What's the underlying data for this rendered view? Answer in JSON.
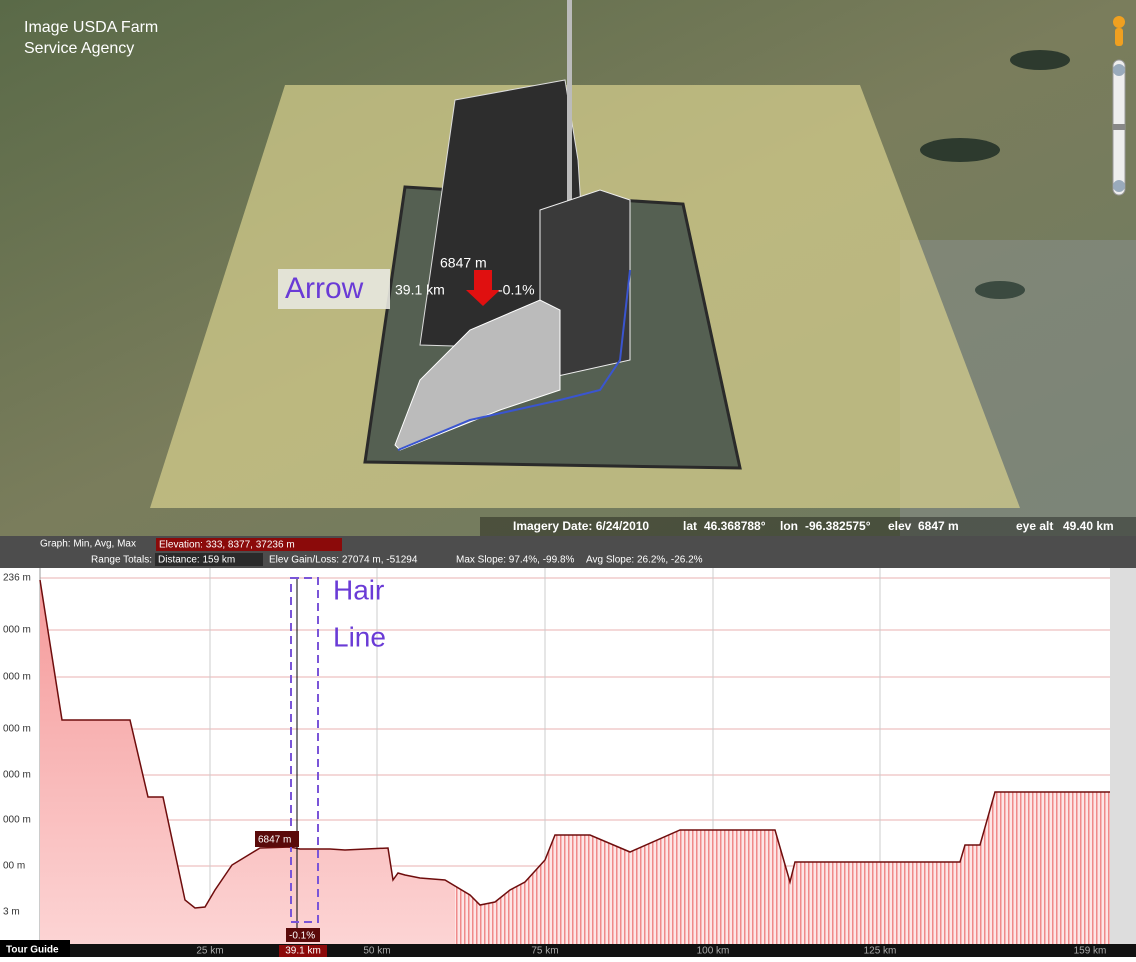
{
  "map": {
    "attribution": [
      "Image USDA Farm",
      "Service Agency"
    ],
    "annotation": "Arrow",
    "marker": {
      "elevation": "6847 m",
      "distance": "39.1 km",
      "slope": "-0.1%"
    }
  },
  "status_bar": {
    "imagery_date": "Imagery Date: 6/24/2010",
    "lat_label": "lat",
    "lat": "46.368788°",
    "lon_label": "lon",
    "lon": "-96.382575°",
    "elev_label": "elev",
    "elev": "6847 m",
    "eye_alt_label": "eye alt",
    "eye_alt": "49.40 km"
  },
  "profile": {
    "graph_label": "Graph: Min, Avg, Max",
    "elevation": "Elevation: 333, 8377, 37236 m",
    "range_label": "Range Totals:",
    "distance": "Distance: 159 km",
    "elev_gain_loss": "Elev Gain/Loss: 27074 m, -51294",
    "max_slope": "Max Slope: 97.4%, -99.8%",
    "avg_slope": "Avg Slope: 26.2%, -26.2%",
    "y_labels": [
      "236 m",
      "000 m",
      "000 m",
      "000 m",
      "000 m",
      "000 m",
      "00 m",
      "3 m"
    ],
    "x_labels": [
      "25 km",
      "50 km",
      "75 km",
      "100 km",
      "125 km",
      "159 km"
    ],
    "hairline": {
      "elevation": "6847 m",
      "slope": "-0.1%",
      "distance": "39.1 km"
    },
    "annotation": [
      "Hair",
      "Line"
    ]
  },
  "tour_guide": "Tour Guide"
}
